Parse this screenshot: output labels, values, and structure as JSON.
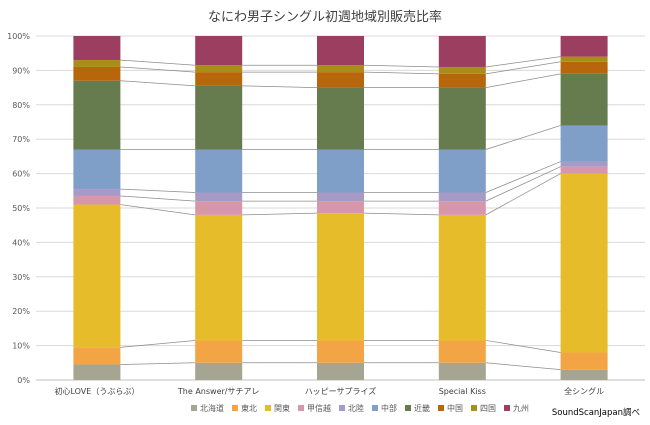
{
  "chart_data": {
    "type": "bar",
    "stacked": true,
    "percent": true,
    "title": "なにわ男子シングル初週地域別販売比率",
    "categories": [
      "初心LOVE（うぶらぶ）",
      "The Answer/サチアレ",
      "ハッピーサプライズ",
      "Special Kiss",
      "全シングル"
    ],
    "y_ticks": [
      "0%",
      "10%",
      "20%",
      "30%",
      "40%",
      "50%",
      "60%",
      "70%",
      "80%",
      "90%",
      "100%"
    ],
    "ylim": [
      0,
      100
    ],
    "grid": true,
    "legend_position": "bottom",
    "series_connector_lines": true,
    "source_note": "SoundScanJapan調べ",
    "series": [
      {
        "name": "北海道",
        "color": "#a5a592",
        "values": [
          4.5,
          5.0,
          5.0,
          5.0,
          3.0
        ]
      },
      {
        "name": "東北",
        "color": "#f3a546",
        "values": [
          5.0,
          6.5,
          6.5,
          6.5,
          5.0
        ]
      },
      {
        "name": "関東",
        "color": "#e7bc2b",
        "values": [
          41.5,
          36.5,
          37.0,
          36.5,
          52.0
        ]
      },
      {
        "name": "甲信越",
        "color": "#d797aa",
        "values": [
          2.5,
          4.0,
          3.5,
          4.0,
          2.0
        ]
      },
      {
        "name": "北陸",
        "color": "#a69ac6",
        "values": [
          2.0,
          2.5,
          2.5,
          2.5,
          1.5
        ]
      },
      {
        "name": "中部",
        "color": "#7f9fc8",
        "values": [
          11.5,
          12.5,
          12.5,
          12.5,
          10.5
        ]
      },
      {
        "name": "近畿",
        "color": "#677c4e",
        "values": [
          20.0,
          18.5,
          18.0,
          18.0,
          15.0
        ]
      },
      {
        "name": "中国",
        "color": "#b8660b",
        "values": [
          4.0,
          4.0,
          4.5,
          4.0,
          3.5
        ]
      },
      {
        "name": "四国",
        "color": "#a88e16",
        "values": [
          2.0,
          2.0,
          2.0,
          2.0,
          1.5
        ]
      },
      {
        "name": "九州",
        "color": "#9b3e5f",
        "values": [
          7.0,
          8.5,
          8.5,
          9.0,
          6.0
        ]
      }
    ]
  }
}
